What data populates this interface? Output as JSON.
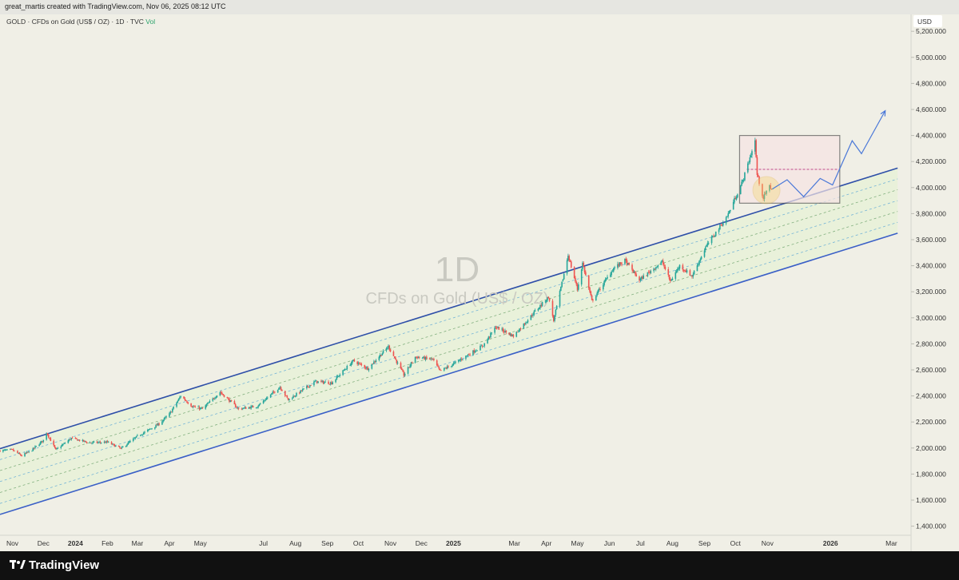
{
  "header": {
    "attribution": "great_martis created with TradingView.com, Nov 06, 2025 08:12 UTC"
  },
  "symbol": {
    "ticker": "GOLD",
    "description": "CFDs on Gold (US$ / OZ)",
    "interval": "1D",
    "exchange": "TVC",
    "vol_label": "Vol",
    "separator": "·"
  },
  "watermark": {
    "interval": "1D",
    "name": "CFDs on Gold (US$ / OZ)"
  },
  "currency": "USD",
  "footer": {
    "brand": "TradingView"
  },
  "colors": {
    "up": "#26a69a",
    "down": "#ef5350",
    "channel": "#3a5fc7",
    "channel_fill": "#e7f1d6",
    "box_border": "#555555",
    "box_fill": "#f6e4e4",
    "projection": "#4a78d8",
    "circle": "#f4d66a"
  },
  "chart_data": {
    "type": "candlestick",
    "symbol": "GOLD",
    "y_axis": {
      "range": [
        1330,
        5330
      ],
      "ticks": [
        1400,
        1600,
        1800,
        2000,
        2200,
        2400,
        2600,
        2800,
        3000,
        3200,
        3400,
        3600,
        3800,
        4000,
        4200,
        4400,
        4600,
        4800,
        5000,
        5200
      ],
      "tick_labels": [
        "1,400.000",
        "1,600.000",
        "1,800.000",
        "2,000.000",
        "2,200.000",
        "2,400.000",
        "2,600.000",
        "2,800.000",
        "3,000.000",
        "3,200.000",
        "3,400.000",
        "3,600.000",
        "3,800.000",
        "4,000.000",
        "4,200.000",
        "4,400.000",
        "4,600.000",
        "4,800.000",
        "5,000.000",
        "5,200.000"
      ]
    },
    "x_axis": {
      "range": [
        "2023-10-20",
        "2026-03-20"
      ],
      "ticks": [
        {
          "date": "2023-11-01",
          "label": "Nov"
        },
        {
          "date": "2023-12-01",
          "label": "Dec"
        },
        {
          "date": "2024-01-01",
          "label": "2024"
        },
        {
          "date": "2024-02-01",
          "label": "Feb"
        },
        {
          "date": "2024-03-01",
          "label": "Mar"
        },
        {
          "date": "2024-04-01",
          "label": "Apr"
        },
        {
          "date": "2024-05-01",
          "label": "May"
        },
        {
          "date": "2024-07-01",
          "label": "Jul"
        },
        {
          "date": "2024-08-01",
          "label": "Aug"
        },
        {
          "date": "2024-09-01",
          "label": "Sep"
        },
        {
          "date": "2024-10-01",
          "label": "Oct"
        },
        {
          "date": "2024-11-01",
          "label": "Nov"
        },
        {
          "date": "2024-12-01",
          "label": "Dec"
        },
        {
          "date": "2025-01-01",
          "label": "2025"
        },
        {
          "date": "2025-03-01",
          "label": "Mar"
        },
        {
          "date": "2025-04-01",
          "label": "Apr"
        },
        {
          "date": "2025-05-01",
          "label": "May"
        },
        {
          "date": "2025-06-01",
          "label": "Jun"
        },
        {
          "date": "2025-07-01",
          "label": "Jul"
        },
        {
          "date": "2025-08-01",
          "label": "Aug"
        },
        {
          "date": "2025-09-01",
          "label": "Sep"
        },
        {
          "date": "2025-10-01",
          "label": "Oct"
        },
        {
          "date": "2025-11-01",
          "label": "Nov"
        },
        {
          "date": "2026-01-01",
          "label": "2026"
        },
        {
          "date": "2026-03-01",
          "label": "Mar"
        }
      ]
    },
    "price_path": [
      [
        "2023-10-20",
        1980
      ],
      [
        "2023-11-01",
        1985
      ],
      [
        "2023-11-10",
        1940
      ],
      [
        "2023-11-20",
        1985
      ],
      [
        "2023-12-01",
        2060
      ],
      [
        "2023-12-04",
        2120
      ],
      [
        "2023-12-13",
        1985
      ],
      [
        "2023-12-28",
        2075
      ],
      [
        "2024-01-15",
        2040
      ],
      [
        "2024-02-01",
        2045
      ],
      [
        "2024-02-14",
        1995
      ],
      [
        "2024-03-01",
        2090
      ],
      [
        "2024-03-21",
        2180
      ],
      [
        "2024-04-01",
        2260
      ],
      [
        "2024-04-12",
        2400
      ],
      [
        "2024-04-23",
        2320
      ],
      [
        "2024-05-03",
        2300
      ],
      [
        "2024-05-20",
        2430
      ],
      [
        "2024-06-07",
        2300
      ],
      [
        "2024-06-25",
        2320
      ],
      [
        "2024-07-17",
        2470
      ],
      [
        "2024-07-25",
        2370
      ],
      [
        "2024-08-20",
        2510
      ],
      [
        "2024-09-05",
        2500
      ],
      [
        "2024-09-26",
        2670
      ],
      [
        "2024-10-10",
        2610
      ],
      [
        "2024-10-30",
        2780
      ],
      [
        "2024-11-14",
        2560
      ],
      [
        "2024-11-25",
        2700
      ],
      [
        "2024-12-12",
        2680
      ],
      [
        "2024-12-19",
        2590
      ],
      [
        "2025-01-02",
        2650
      ],
      [
        "2025-01-30",
        2790
      ],
      [
        "2025-02-11",
        2930
      ],
      [
        "2025-02-28",
        2860
      ],
      [
        "2025-03-20",
        3040
      ],
      [
        "2025-04-03",
        3160
      ],
      [
        "2025-04-08",
        2980
      ],
      [
        "2025-04-22",
        3480
      ],
      [
        "2025-05-01",
        3220
      ],
      [
        "2025-05-06",
        3420
      ],
      [
        "2025-05-15",
        3130
      ],
      [
        "2025-06-05",
        3380
      ],
      [
        "2025-06-16",
        3440
      ],
      [
        "2025-06-30",
        3290
      ],
      [
        "2025-07-22",
        3430
      ],
      [
        "2025-07-30",
        3280
      ],
      [
        "2025-08-08",
        3400
      ],
      [
        "2025-08-20",
        3320
      ],
      [
        "2025-09-02",
        3540
      ],
      [
        "2025-09-23",
        3780
      ],
      [
        "2025-10-08",
        4050
      ],
      [
        "2025-10-20",
        4360
      ],
      [
        "2025-10-22",
        4100
      ],
      [
        "2025-10-28",
        3920
      ],
      [
        "2025-11-03",
        4010
      ],
      [
        "2025-11-06",
        3990
      ]
    ],
    "channel": {
      "upper": [
        [
          "2023-10-20",
          1995
        ],
        [
          "2026-03-07",
          4150
        ]
      ],
      "lower": [
        [
          "2023-10-20",
          1490
        ],
        [
          "2026-03-07",
          3650
        ]
      ],
      "inner_levels": 5
    },
    "consolidation_box": {
      "from": "2025-10-05",
      "to": "2026-01-10",
      "low": 3880,
      "high": 4400,
      "mid_level": 4140,
      "mid_from": "2025-10-12",
      "mid_to": "2026-01-10"
    },
    "highlight_circle": {
      "date": "2025-10-31",
      "price": 3980
    },
    "projection": [
      [
        "2025-11-06",
        3990
      ],
      [
        "2025-11-20",
        4060
      ],
      [
        "2025-12-06",
        3930
      ],
      [
        "2025-12-22",
        4070
      ],
      [
        "2026-01-03",
        4020
      ],
      [
        "2026-01-22",
        4360
      ],
      [
        "2026-01-31",
        4260
      ],
      [
        "2026-02-23",
        4590
      ]
    ]
  }
}
